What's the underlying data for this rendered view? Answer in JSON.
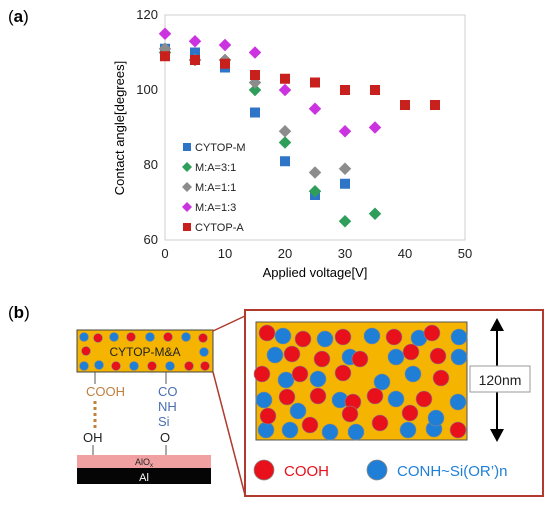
{
  "panel_a": {
    "label_open": "(",
    "label_letter": "a",
    "label_close": ")"
  },
  "panel_b": {
    "label_open": "(",
    "label_letter": "b",
    "label_close": ")",
    "film_label": "CYTOP-M&A",
    "cooh_label": "COOH",
    "co_label": "CO",
    "nh_label": "NH",
    "si_label": "Si",
    "oh_label": "OH",
    "o_label": "O",
    "alox_label": "AlO",
    "alox_sub": "x",
    "al_label": "Al",
    "thickness_label": "120nm",
    "legend_cooh": "COOH",
    "legend_conh": "CONH~Si(OR’)n",
    "colors": {
      "film": "#f5b400",
      "red_dot": "#e8101a",
      "blue_dot": "#1f7fd6",
      "frame": "#b03a2e",
      "cooh_text": "#c08040",
      "conh_text": "#4a6fb0",
      "alox": "#f0a0a0"
    }
  },
  "chart_data": {
    "type": "scatter",
    "xlabel": "Applied voltage[V]",
    "ylabel": "Contact angle[degrees]",
    "xlim": [
      0,
      50
    ],
    "ylim": [
      60,
      120
    ],
    "xticks": [
      0,
      10,
      20,
      30,
      40,
      50
    ],
    "yticks": [
      60,
      80,
      100,
      120
    ],
    "legend_position": "lower-left inside",
    "series": [
      {
        "name": "CYTOP-M",
        "marker": "square",
        "color": "#2e75c8",
        "x": [
          0,
          5,
          10,
          15,
          20,
          25,
          30
        ],
        "y": [
          111,
          110,
          106,
          94,
          81,
          72,
          75
        ]
      },
      {
        "name": "M:A=3:1",
        "marker": "diamond",
        "color": "#2e9e5a",
        "x": [
          0,
          5,
          10,
          15,
          20,
          25,
          30,
          35
        ],
        "y": [
          110,
          108,
          108,
          100,
          86,
          73,
          65,
          67
        ]
      },
      {
        "name": "M:A=1:1",
        "marker": "diamond",
        "color": "#8c8c8c",
        "x": [
          0,
          5,
          10,
          15,
          20,
          25,
          30
        ],
        "y": [
          111,
          108,
          108,
          102,
          89,
          78,
          79
        ]
      },
      {
        "name": "M:A=1:3",
        "marker": "diamond",
        "color": "#cc33e0",
        "x": [
          0,
          5,
          10,
          15,
          20,
          25,
          30,
          35
        ],
        "y": [
          115,
          113,
          112,
          110,
          100,
          95,
          89,
          90
        ]
      },
      {
        "name": "CYTOP-A",
        "marker": "square",
        "color": "#c8201c",
        "x": [
          0,
          5,
          10,
          15,
          20,
          25,
          30,
          35,
          40,
          45
        ],
        "y": [
          109,
          108,
          107,
          104,
          103,
          102,
          100,
          100,
          96,
          96
        ]
      }
    ]
  }
}
